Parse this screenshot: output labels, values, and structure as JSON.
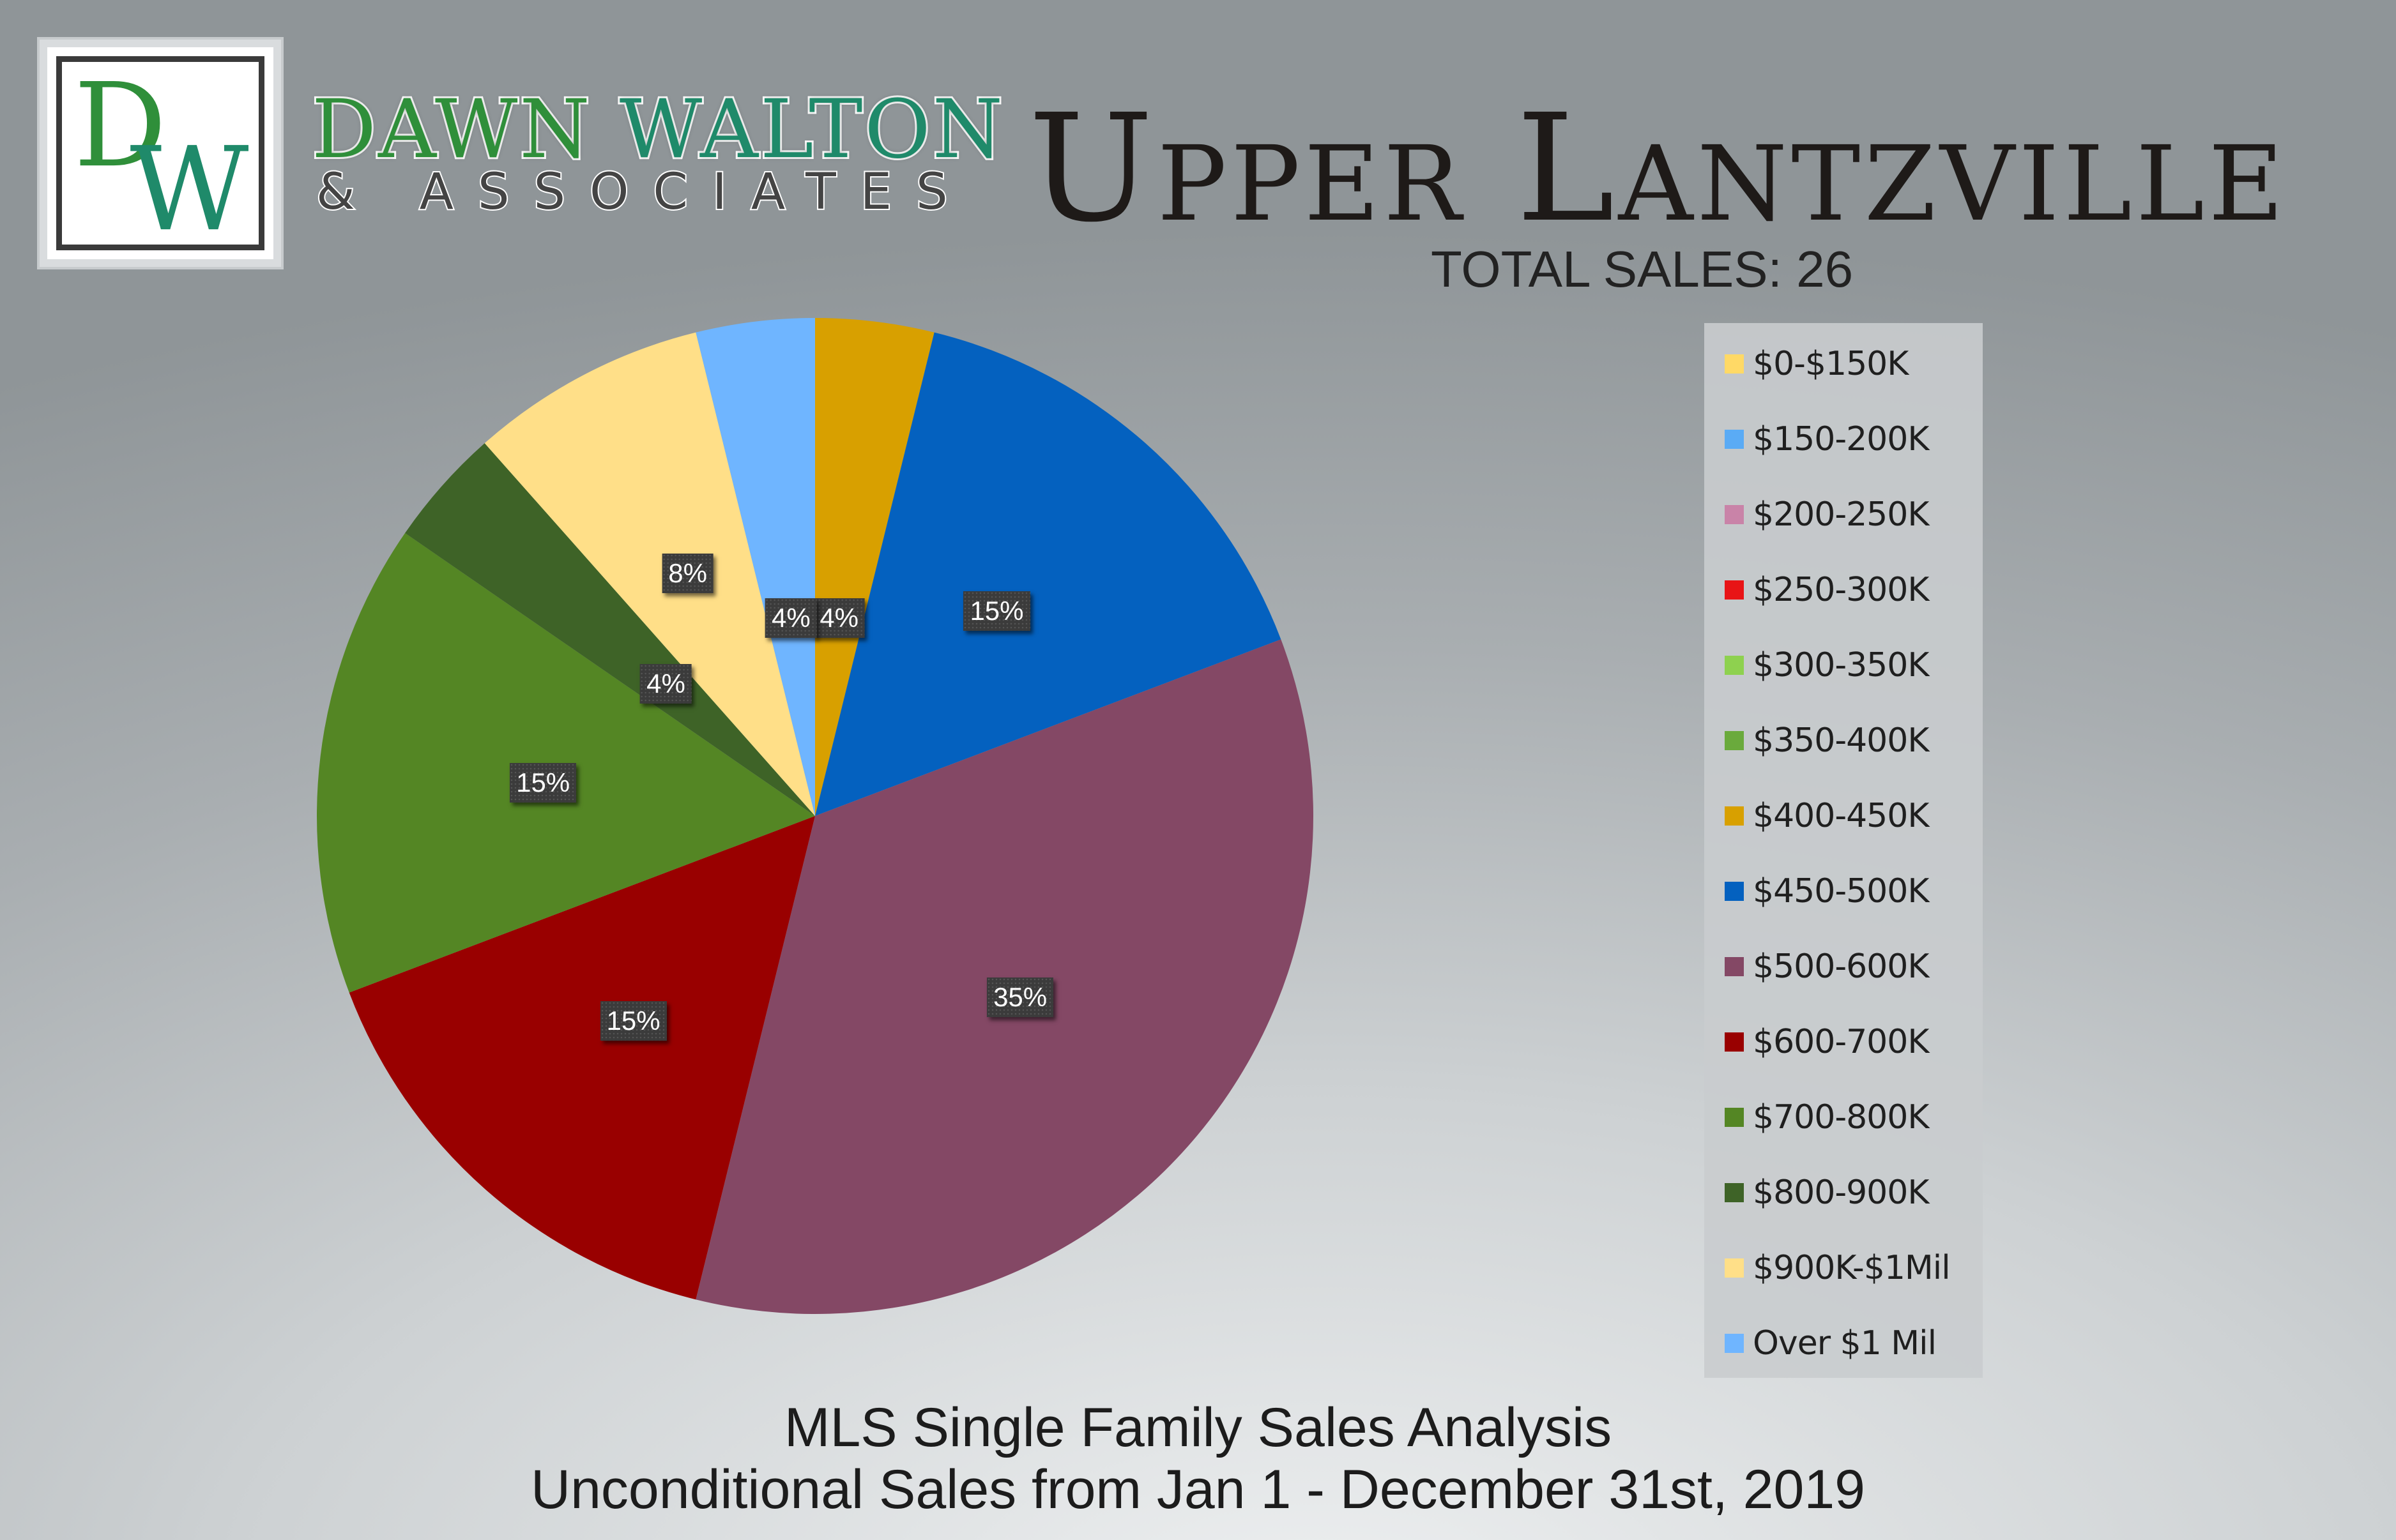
{
  "brand": {
    "monogram": "DW",
    "name_part1": "DAWN",
    "name_part2": "WALTON",
    "subtitle": "& ASSOCIATES"
  },
  "header": {
    "title": "Upper Lantzville",
    "total_sales": "TOTAL SALES: 26"
  },
  "footer": {
    "line1": "MLS Single Family Sales Analysis",
    "line2": "Unconditional Sales from Jan 1 - December 31st, 2019"
  },
  "chart_data": {
    "type": "pie",
    "title": "Upper Lantzville",
    "legend_position": "right",
    "categories": [
      "$0-$150K",
      "$150-200K",
      "$200-250K",
      "$250-300K",
      "$300-350K",
      "$350-400K",
      "$400-450K",
      "$450-500K",
      "$500-600K",
      "$600-700K",
      "$700-800K",
      "$800-900K",
      "$900K-$1Mil",
      "Over $1 Mil"
    ],
    "colors": [
      "#ffd966",
      "#5aabf5",
      "#c983a8",
      "#e81416",
      "#8ed14f",
      "#6aaa3c",
      "#d8a000",
      "#0461bf",
      "#844865",
      "#990000",
      "#548624",
      "#3e6327",
      "#ffdf88",
      "#6fb5ff"
    ],
    "values": [
      0,
      0,
      0,
      0,
      0,
      0,
      1,
      4,
      9,
      4,
      4,
      1,
      2,
      1
    ],
    "percent_labels": [
      "0%",
      "0%",
      "0%",
      "0%",
      "0%",
      "0%",
      "4%",
      "15%",
      "35%",
      "15%",
      "15%",
      "4%",
      "8%",
      "4%"
    ]
  }
}
